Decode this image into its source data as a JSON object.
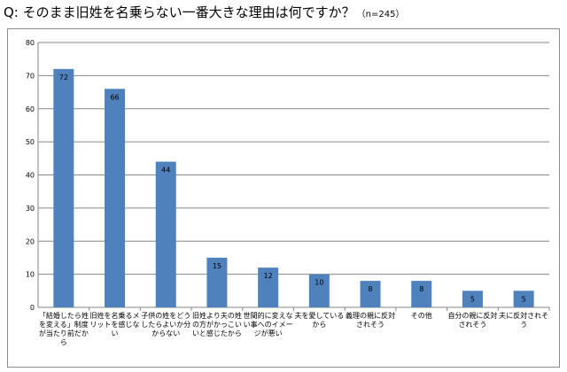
{
  "title": "Q: そのまま旧姓を名乗らない一番大きな理由は何ですか？",
  "title_note": "（n=245）",
  "chart_data": {
    "type": "bar",
    "title": "Q: そのまま旧姓を名乗らない一番大きな理由は何ですか？",
    "n_label": "（n=245）",
    "categories": [
      "「結婚したら姓を変える」制度が当たり前だから",
      "旧姓を名乗るメリットを感じない",
      "子供の姓をどうしたらよいか分からない",
      "旧姓より夫の姓の方がかっこいいと感じたから",
      "世間的に変えない事へのイメージが悪い",
      "夫を愛しているから",
      "義理の親に反対されそう",
      "その他",
      "自分の親に反対されそう",
      "夫に反対されそう"
    ],
    "values": [
      72,
      66,
      44,
      15,
      12,
      10,
      8,
      8,
      5,
      5
    ],
    "ylim": [
      0,
      80
    ],
    "yticks": [
      0,
      10,
      20,
      30,
      40,
      50,
      60,
      70,
      80
    ],
    "grid": true,
    "bar_color": "#4f81bd",
    "grid_color": "#868686"
  }
}
